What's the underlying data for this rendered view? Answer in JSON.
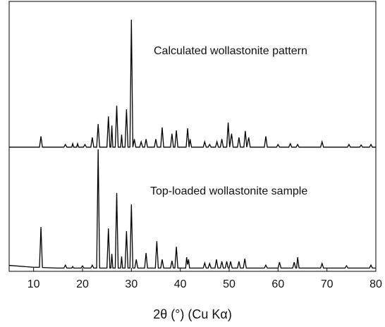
{
  "chart_data": {
    "type": "line",
    "x_label": "2θ (°) (Cu Kα)",
    "xlim": [
      5,
      80
    ],
    "xticks": [
      10,
      20,
      30,
      40,
      50,
      60,
      70,
      80
    ],
    "ylim": [
      0,
      100
    ],
    "annotations": [
      "Calculated wollastonite pattern",
      "Top-loaded wollastonite sample"
    ],
    "series": [
      {
        "color": "#000000",
        "x": [
          5,
          11.2,
          11.5,
          11.8,
          16.2,
          16.5,
          16.8,
          17.8,
          18,
          18.2,
          18.8,
          19,
          19.2,
          20.2,
          20.5,
          20.8,
          21.7,
          22,
          22.3,
          22.9,
          23.2,
          23.5,
          25,
          25.3,
          25.6,
          25.8,
          26,
          26.2,
          26.7,
          27,
          27.3,
          27.8,
          28,
          28.2,
          28.7,
          29,
          29.3,
          29.7,
          30,
          30.3,
          30.6,
          30.9,
          31.7,
          32,
          32.3,
          32.7,
          33,
          33.3,
          34.7,
          35,
          35.3,
          36,
          36.3,
          36.6,
          38,
          38.3,
          38.6,
          38.9,
          39.2,
          39.5,
          41.2,
          41.5,
          41.8,
          42,
          42.3,
          44.7,
          45,
          45.3,
          45.7,
          46,
          46.3,
          47.2,
          47.5,
          47.8,
          48.2,
          48.5,
          48.8,
          49.5,
          49.8,
          50.1,
          50.5,
          50.8,
          51.7,
          52,
          52.3,
          53,
          53.3,
          53.6,
          54,
          54.3,
          57.2,
          57.5,
          57.8,
          59.7,
          60,
          60.3,
          62.2,
          62.5,
          62.8,
          63.7,
          64,
          64.3,
          68.7,
          69,
          69.3,
          74.2,
          74.5,
          74.8,
          76.7,
          77,
          77.3,
          78.7,
          79,
          79.3,
          80
        ],
        "values": [
          46,
          46,
          50,
          46,
          46,
          47,
          46,
          46,
          47.3,
          46,
          46,
          47.3,
          46,
          46,
          47,
          46,
          46,
          49.6,
          46,
          46,
          54.6,
          46,
          46,
          57.4,
          46,
          46,
          54,
          46,
          46,
          61.4,
          46,
          46,
          50.6,
          46,
          46,
          60,
          46,
          46,
          93.2,
          46,
          49,
          46,
          46,
          48,
          46,
          46,
          49,
          46,
          46,
          49,
          46,
          46,
          53.3,
          46,
          46,
          51,
          46,
          46,
          52.2,
          46,
          46,
          53,
          46,
          49,
          46,
          46,
          48,
          46,
          46,
          47,
          46,
          46,
          48,
          46,
          46,
          49,
          46,
          46,
          55.1,
          46,
          51,
          46,
          46,
          49.6,
          46,
          46,
          52,
          46,
          49.6,
          46,
          46,
          50,
          46,
          46,
          47,
          46,
          46,
          47.3,
          46,
          46,
          47,
          46,
          46,
          48,
          46,
          46,
          47,
          46,
          46,
          46.8,
          46,
          46,
          47,
          46,
          46
        ]
      },
      {
        "color": "#000000",
        "x": [
          5,
          10,
          11.2,
          11.5,
          11.8,
          15,
          16.2,
          16.5,
          16.8,
          17.8,
          18,
          18.2,
          19.7,
          20,
          20.3,
          21.7,
          22,
          22.3,
          22.9,
          23.2,
          23.5,
          25,
          25.3,
          25.6,
          25.8,
          26,
          26.2,
          26.7,
          27,
          27.3,
          27.8,
          28,
          28.2,
          28.7,
          29,
          29.3,
          29.7,
          30,
          30.3,
          30.7,
          31,
          31.3,
          32.7,
          33,
          33.3,
          34.9,
          35.2,
          35.5,
          36,
          36.3,
          36.6,
          38,
          38.3,
          38.6,
          38.9,
          39.2,
          39.5,
          41.1,
          41.3,
          41.5,
          41.7,
          41.9,
          44.7,
          45,
          45.3,
          45.7,
          46,
          46.3,
          47.1,
          47.4,
          47.7,
          48.2,
          48.5,
          48.8,
          49.2,
          49.5,
          49.8,
          50,
          50.3,
          50.6,
          51.7,
          52,
          52.3,
          52.9,
          53.2,
          53.5,
          57.2,
          57.5,
          57.8,
          60,
          60.3,
          60.6,
          63,
          63.3,
          63.6,
          63.8,
          64,
          64.3,
          68.7,
          69,
          69.3,
          73.7,
          74,
          74.3,
          78.7,
          79,
          79.3,
          80
        ],
        "values": [
          2.2,
          1.5,
          1.5,
          16.4,
          1.4,
          1.2,
          1.2,
          2.3,
          1.2,
          1.2,
          1.8,
          1.2,
          1.2,
          2,
          1.2,
          1.2,
          2.3,
          1.2,
          1.2,
          45.2,
          1.2,
          1.2,
          15.9,
          1.2,
          1.2,
          6.5,
          1.2,
          1.2,
          29,
          1.2,
          1.2,
          5.5,
          1.2,
          1.2,
          14.9,
          1.2,
          1.2,
          24.8,
          1.2,
          1.2,
          4.4,
          1.2,
          1.2,
          6.8,
          1.2,
          1.2,
          11.2,
          1.2,
          1.2,
          4.4,
          1.2,
          1.2,
          3.9,
          1.2,
          1.2,
          9.1,
          1.2,
          1.2,
          5.2,
          2.5,
          4.4,
          1.2,
          1.2,
          3.1,
          1.2,
          1.2,
          2.9,
          1.2,
          1.2,
          4.4,
          1.2,
          1.2,
          3.7,
          1.2,
          1.2,
          3.7,
          1.2,
          1.2,
          3.7,
          1.2,
          1.2,
          3.7,
          1.2,
          1.2,
          4.7,
          1.2,
          1.2,
          2.3,
          1.2,
          1.2,
          3.4,
          1.2,
          1.2,
          3.4,
          1.2,
          1.2,
          5.2,
          1.2,
          1.2,
          2.9,
          1.2,
          1.2,
          2.1,
          1.2,
          1.2,
          2.3,
          1.2,
          1.2
        ]
      }
    ]
  }
}
